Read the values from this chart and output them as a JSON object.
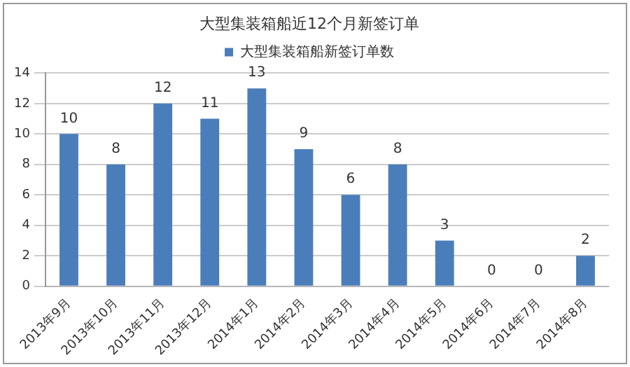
{
  "chart_data": {
    "type": "bar",
    "title": "大型集装箱船近12个月新签订单",
    "categories": [
      "2013年9月",
      "2013年10月",
      "2013年11月",
      "2013年12月",
      "2014年1月",
      "2014年2月",
      "2014年3月",
      "2014年4月",
      "2014年5月",
      "2014年6月",
      "2014年7月",
      "2014年8月"
    ],
    "series": [
      {
        "name": "大型集装箱船新签订单数",
        "color": "#4a7ebb",
        "values": [
          10,
          8,
          12,
          11,
          13,
          9,
          6,
          8,
          3,
          0,
          0,
          2
        ]
      }
    ],
    "ylim": [
      0,
      14
    ],
    "yticks": [
      0,
      2,
      4,
      6,
      8,
      10,
      12,
      14
    ],
    "grid": "y",
    "legend": "top",
    "data_labels": true
  }
}
